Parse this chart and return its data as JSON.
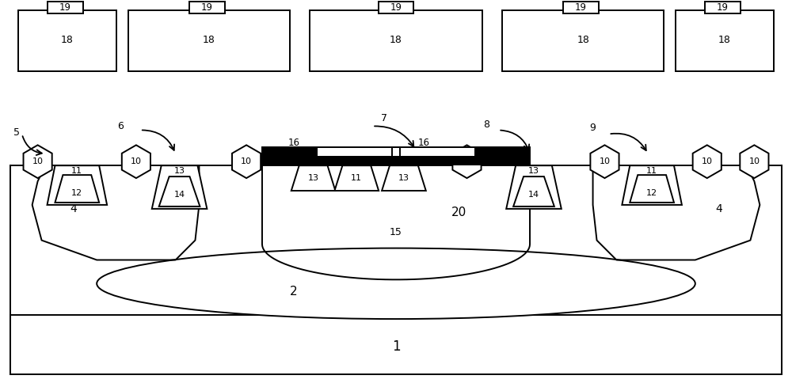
{
  "fig_width": 10.0,
  "fig_height": 4.84,
  "bg_color": "#ffffff",
  "line_color": "#000000",
  "line_width": 1.4,
  "substrate_label": "1",
  "nwell_label": "2",
  "region4_label": "4",
  "region5_label": "5",
  "region6_label": "6",
  "region7_label": "7",
  "region8_label": "8",
  "region9_label": "9",
  "node10_label": "10",
  "node11_label": "11",
  "node12_label": "12",
  "node13_label": "13",
  "node14_label": "14",
  "region15_label": "15",
  "gate16_label": "16",
  "region18_label": "18",
  "region19_label": "19",
  "region20_label": "20",
  "y_surf": 27.5,
  "xlim": [
    0,
    100
  ],
  "ylim": [
    0,
    48.4
  ]
}
